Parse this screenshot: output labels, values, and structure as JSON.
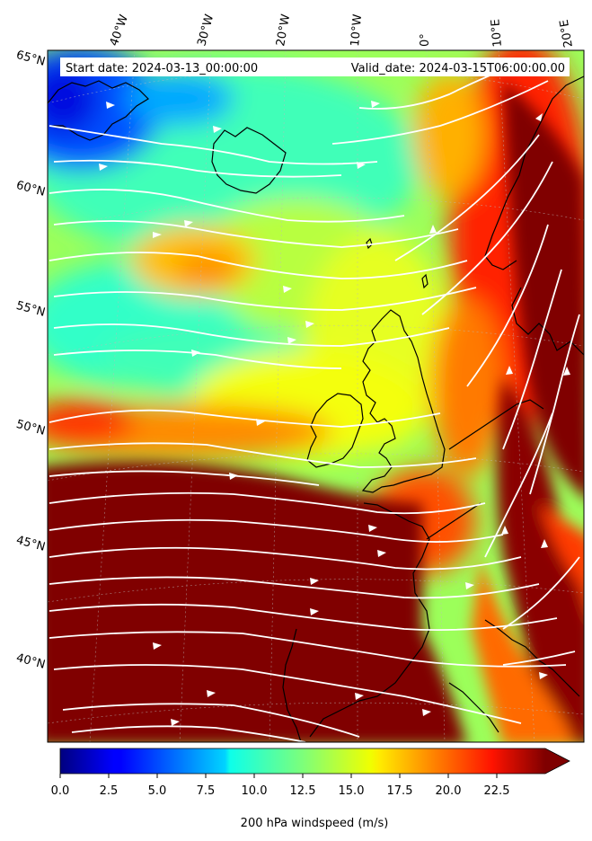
{
  "header": {
    "start_label": "Start date: 2024-03-13_00:00:00",
    "valid_label": "Valid_date: 2024-03-15T06:00:00.00"
  },
  "longitude_labels": [
    "40°W",
    "30°W",
    "20°W",
    "10°W",
    "0°",
    "10°E",
    "20°E"
  ],
  "latitude_labels": [
    "65°N",
    "60°N",
    "55°N",
    "50°N",
    "45°N",
    "40°N"
  ],
  "colorbar": {
    "title": "200 hPa windspeed (m/s)",
    "ticks": [
      "0.0",
      "2.5",
      "5.0",
      "7.5",
      "10.0",
      "12.5",
      "15.0",
      "17.5",
      "20.0",
      "22.5"
    ],
    "range": [
      0,
      25
    ],
    "extend": "max",
    "colormap": "jet"
  },
  "colors": {
    "max_speed": "#800000",
    "streamline": "#ffffff",
    "coastline": "#000000"
  }
}
